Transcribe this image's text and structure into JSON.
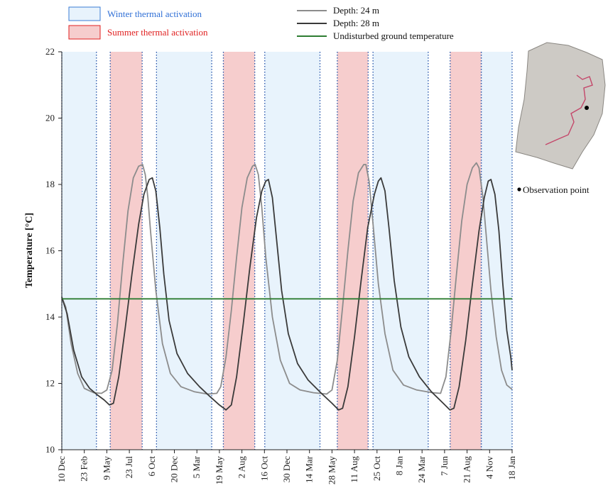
{
  "chart_data": {
    "type": "line",
    "ylabel": "Temperature [°C]",
    "ylim": [
      10,
      22
    ],
    "yticks": [
      10,
      12,
      14,
      16,
      18,
      20,
      22
    ],
    "x_tick_labels": [
      "10 Dec",
      "23 Feb",
      "9 May",
      "23 Jul",
      "6 Oct",
      "20 Dec",
      "5 Mar",
      "19 May",
      "2 Aug",
      "16 Oct",
      "30 Dec",
      "14 Mar",
      "28 May",
      "11 Aug",
      "25 Oct",
      "8 Jan",
      "24 Mar",
      "7 Jun",
      "21 Aug",
      "4 Nov",
      "18 Jan"
    ],
    "legend": {
      "winter_label": "Winter thermal activation",
      "summer_label": "Summer thermal activation",
      "winter_color": "#2f6fd6",
      "summer_color": "#e02020"
    },
    "bands": {
      "winter": [
        [
          0,
          1.28
        ],
        [
          3.5,
          5.54
        ],
        [
          7.5,
          9.54
        ],
        [
          11.5,
          13.54
        ],
        [
          15.5,
          16.64
        ]
      ],
      "summer": [
        [
          1.79,
          2.97
        ],
        [
          5.97,
          7.13
        ],
        [
          10.18,
          11.32
        ],
        [
          14.35,
          15.5
        ]
      ],
      "winter_fill": "#e8f3fc",
      "summer_fill": "#f6cdcd"
    },
    "series": [
      {
        "name": "Depth: 24 m",
        "color": "#8c8c8c",
        "points": [
          [
            0,
            14.6
          ],
          [
            0.15,
            14.3
          ],
          [
            0.35,
            13.2
          ],
          [
            0.6,
            12.3
          ],
          [
            0.85,
            11.85
          ],
          [
            1.2,
            11.72
          ],
          [
            1.5,
            11.7
          ],
          [
            1.7,
            11.8
          ],
          [
            1.9,
            12.4
          ],
          [
            2.1,
            13.8
          ],
          [
            2.3,
            15.6
          ],
          [
            2.5,
            17.2
          ],
          [
            2.7,
            18.2
          ],
          [
            2.9,
            18.55
          ],
          [
            3.05,
            18.6
          ],
          [
            3.15,
            18.3
          ],
          [
            3.25,
            17.6
          ],
          [
            3.35,
            16.6
          ],
          [
            3.55,
            14.8
          ],
          [
            3.8,
            13.2
          ],
          [
            4.1,
            12.3
          ],
          [
            4.5,
            11.9
          ],
          [
            5.0,
            11.75
          ],
          [
            5.5,
            11.68
          ],
          [
            5.85,
            11.7
          ],
          [
            6.0,
            11.9
          ],
          [
            6.2,
            12.8
          ],
          [
            6.4,
            14.2
          ],
          [
            6.6,
            15.8
          ],
          [
            6.8,
            17.3
          ],
          [
            7.0,
            18.2
          ],
          [
            7.2,
            18.55
          ],
          [
            7.3,
            18.6
          ],
          [
            7.42,
            18.3
          ],
          [
            7.55,
            17.3
          ],
          [
            7.7,
            15.8
          ],
          [
            7.95,
            14.0
          ],
          [
            8.25,
            12.7
          ],
          [
            8.6,
            12.0
          ],
          [
            9.0,
            11.8
          ],
          [
            9.5,
            11.72
          ],
          [
            10.0,
            11.68
          ],
          [
            10.2,
            11.8
          ],
          [
            10.4,
            12.7
          ],
          [
            10.6,
            14.3
          ],
          [
            10.8,
            16.0
          ],
          [
            11.0,
            17.5
          ],
          [
            11.2,
            18.35
          ],
          [
            11.4,
            18.6
          ],
          [
            11.48,
            18.6
          ],
          [
            11.6,
            18.1
          ],
          [
            11.75,
            16.8
          ],
          [
            11.95,
            15.0
          ],
          [
            12.2,
            13.5
          ],
          [
            12.5,
            12.4
          ],
          [
            12.9,
            11.95
          ],
          [
            13.4,
            11.8
          ],
          [
            14.0,
            11.72
          ],
          [
            14.3,
            11.7
          ],
          [
            14.5,
            12.2
          ],
          [
            14.7,
            13.6
          ],
          [
            14.9,
            15.3
          ],
          [
            15.1,
            16.9
          ],
          [
            15.3,
            18.0
          ],
          [
            15.5,
            18.5
          ],
          [
            15.65,
            18.65
          ],
          [
            15.75,
            18.5
          ],
          [
            15.9,
            17.6
          ],
          [
            16.05,
            16.2
          ],
          [
            16.2,
            14.8
          ],
          [
            16.4,
            13.4
          ],
          [
            16.6,
            12.4
          ],
          [
            16.8,
            11.95
          ],
          [
            17.0,
            11.82
          ]
        ]
      },
      {
        "name": "Depth: 28 m",
        "color": "#3a3a3a",
        "points": [
          [
            0,
            14.6
          ],
          [
            0.2,
            14.1
          ],
          [
            0.45,
            13.0
          ],
          [
            0.75,
            12.2
          ],
          [
            1.05,
            11.85
          ],
          [
            1.35,
            11.65
          ],
          [
            1.6,
            11.5
          ],
          [
            1.8,
            11.35
          ],
          [
            1.95,
            11.4
          ],
          [
            2.15,
            12.2
          ],
          [
            2.4,
            13.7
          ],
          [
            2.65,
            15.3
          ],
          [
            2.9,
            16.8
          ],
          [
            3.1,
            17.7
          ],
          [
            3.3,
            18.15
          ],
          [
            3.42,
            18.2
          ],
          [
            3.55,
            17.8
          ],
          [
            3.7,
            16.7
          ],
          [
            3.85,
            15.3
          ],
          [
            4.05,
            13.9
          ],
          [
            4.35,
            12.9
          ],
          [
            4.75,
            12.3
          ],
          [
            5.2,
            11.9
          ],
          [
            5.6,
            11.6
          ],
          [
            5.95,
            11.35
          ],
          [
            6.2,
            11.2
          ],
          [
            6.4,
            11.35
          ],
          [
            6.6,
            12.2
          ],
          [
            6.85,
            13.8
          ],
          [
            7.1,
            15.5
          ],
          [
            7.35,
            17.0
          ],
          [
            7.55,
            17.8
          ],
          [
            7.7,
            18.1
          ],
          [
            7.8,
            18.15
          ],
          [
            7.95,
            17.6
          ],
          [
            8.1,
            16.4
          ],
          [
            8.3,
            14.8
          ],
          [
            8.55,
            13.5
          ],
          [
            8.9,
            12.6
          ],
          [
            9.3,
            12.1
          ],
          [
            9.8,
            11.7
          ],
          [
            10.2,
            11.4
          ],
          [
            10.45,
            11.2
          ],
          [
            10.6,
            11.25
          ],
          [
            10.8,
            11.9
          ],
          [
            11.05,
            13.4
          ],
          [
            11.3,
            15.1
          ],
          [
            11.55,
            16.7
          ],
          [
            11.8,
            17.7
          ],
          [
            11.95,
            18.1
          ],
          [
            12.05,
            18.2
          ],
          [
            12.2,
            17.8
          ],
          [
            12.35,
            16.7
          ],
          [
            12.55,
            15.1
          ],
          [
            12.8,
            13.7
          ],
          [
            13.1,
            12.8
          ],
          [
            13.5,
            12.2
          ],
          [
            13.95,
            11.75
          ],
          [
            14.4,
            11.4
          ],
          [
            14.65,
            11.2
          ],
          [
            14.8,
            11.25
          ],
          [
            15.0,
            11.9
          ],
          [
            15.25,
            13.3
          ],
          [
            15.5,
            15.0
          ],
          [
            15.75,
            16.6
          ],
          [
            15.95,
            17.6
          ],
          [
            16.1,
            18.1
          ],
          [
            16.2,
            18.15
          ],
          [
            16.35,
            17.7
          ],
          [
            16.5,
            16.6
          ],
          [
            16.65,
            15.0
          ],
          [
            16.8,
            13.6
          ],
          [
            16.95,
            12.8
          ],
          [
            17.0,
            12.4
          ]
        ]
      },
      {
        "name": "Undisturbed ground temperature",
        "color": "#2e7d32",
        "points": [
          [
            0,
            14.55
          ],
          [
            17,
            14.55
          ]
        ]
      }
    ],
    "inset": {
      "marker_label": "Observation point"
    }
  }
}
